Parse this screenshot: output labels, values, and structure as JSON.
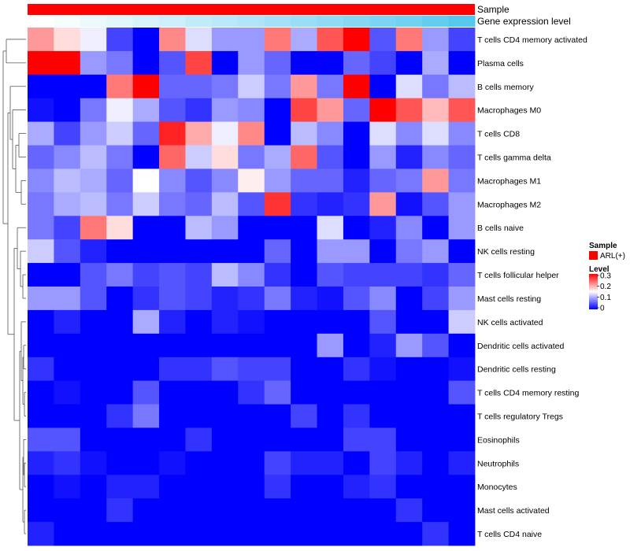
{
  "chart_data": {
    "type": "heatmap",
    "annotation_tracks": [
      {
        "label": "Sample",
        "color": "#ff0000"
      },
      {
        "label": "Gene expression level",
        "gradient": [
          "#ffffff",
          "#56c8f0"
        ]
      }
    ],
    "rows": [
      "T cells CD4 memory activated",
      "Plasma cells",
      "B cells memory",
      "Macrophages M0",
      "T cells CD8",
      "T cells gamma delta",
      "Macrophages M1",
      "Macrophages M2",
      "B cells naive",
      "NK cells resting",
      "T cells follicular helper",
      "Mast cells resting",
      "NK cells activated",
      "Dendritic cells activated",
      "Dendritic cells resting",
      "T cells CD4 memory resting",
      "T cells regulatory  Tregs",
      "Eosinophils",
      "Neutrophils",
      "Monocytes",
      "Mast cells activated",
      "T cells CD4 naive"
    ],
    "values": [
      [
        0.21,
        0.17,
        0.14,
        0.04,
        0.0,
        0.22,
        0.13,
        0.09,
        0.09,
        0.23,
        0.1,
        0.25,
        0.3,
        0.05,
        0.23,
        0.09,
        0.04
      ],
      [
        0.3,
        0.3,
        0.09,
        0.07,
        0.0,
        0.05,
        0.26,
        0.0,
        0.09,
        0.06,
        0.0,
        0.0,
        0.06,
        0.04,
        0.0,
        0.1,
        0.0
      ],
      [
        0.0,
        0.0,
        0.0,
        0.23,
        0.3,
        0.06,
        0.06,
        0.07,
        0.12,
        0.07,
        0.21,
        0.07,
        0.3,
        0.0,
        0.13,
        0.07,
        0.11
      ],
      [
        0.01,
        0.0,
        0.07,
        0.14,
        0.1,
        0.05,
        0.03,
        0.09,
        0.08,
        0.0,
        0.26,
        0.21,
        0.06,
        0.3,
        0.25,
        0.19,
        0.25
      ],
      [
        0.1,
        0.04,
        0.09,
        0.12,
        0.06,
        0.28,
        0.2,
        0.14,
        0.22,
        0.0,
        0.11,
        0.08,
        0.0,
        0.13,
        0.08,
        0.13,
        0.08
      ],
      [
        0.06,
        0.08,
        0.11,
        0.07,
        0.0,
        0.24,
        0.12,
        0.17,
        0.07,
        0.1,
        0.24,
        0.05,
        0.0,
        0.09,
        0.02,
        0.08,
        0.06
      ],
      [
        0.08,
        0.11,
        0.1,
        0.06,
        0.15,
        0.08,
        0.05,
        0.08,
        0.16,
        0.09,
        0.06,
        0.06,
        0.02,
        0.06,
        0.07,
        0.21,
        0.07
      ],
      [
        0.07,
        0.1,
        0.11,
        0.07,
        0.12,
        0.07,
        0.06,
        0.11,
        0.05,
        0.27,
        0.03,
        0.02,
        0.03,
        0.21,
        0.01,
        0.05,
        0.09
      ],
      [
        0.07,
        0.04,
        0.23,
        0.17,
        0.0,
        0.0,
        0.11,
        0.09,
        0.0,
        0.0,
        0.0,
        0.13,
        0.0,
        0.02,
        0.08,
        0.0,
        0.09
      ],
      [
        0.12,
        0.05,
        0.02,
        0.0,
        0.0,
        0.0,
        0.0,
        0.0,
        0.0,
        0.06,
        0.0,
        0.09,
        0.09,
        0.0,
        0.07,
        0.09,
        0.0
      ],
      [
        0.0,
        0.0,
        0.05,
        0.07,
        0.04,
        0.05,
        0.04,
        0.11,
        0.08,
        0.03,
        0.0,
        0.05,
        0.04,
        0.04,
        0.04,
        0.03,
        0.06
      ],
      [
        0.09,
        0.09,
        0.05,
        0.0,
        0.03,
        0.05,
        0.04,
        0.02,
        0.03,
        0.07,
        0.02,
        0.01,
        0.05,
        0.08,
        0.0,
        0.04,
        0.09
      ],
      [
        0.0,
        0.02,
        0.0,
        0.0,
        0.1,
        0.02,
        0.0,
        0.02,
        0.01,
        0.0,
        0.0,
        0.0,
        0.0,
        0.05,
        0.0,
        0.0,
        0.12
      ],
      [
        0.0,
        0.0,
        0.0,
        0.0,
        0.0,
        0.0,
        0.0,
        0.0,
        0.0,
        0.0,
        0.0,
        0.09,
        0.0,
        0.02,
        0.09,
        0.05,
        0.0
      ],
      [
        0.03,
        0.0,
        0.0,
        0.0,
        0.0,
        0.03,
        0.03,
        0.05,
        0.04,
        0.04,
        0.0,
        0.0,
        0.03,
        0.01,
        0.0,
        0.0,
        0.01
      ],
      [
        0.0,
        0.01,
        0.0,
        0.0,
        0.05,
        0.0,
        0.0,
        0.0,
        0.03,
        0.06,
        0.0,
        0.0,
        0.0,
        0.0,
        0.0,
        0.0,
        0.05
      ],
      [
        0.0,
        0.0,
        0.0,
        0.03,
        0.07,
        0.0,
        0.0,
        0.0,
        0.0,
        0.0,
        0.04,
        0.0,
        0.03,
        0.0,
        0.0,
        0.0,
        0.0
      ],
      [
        0.05,
        0.05,
        0.0,
        0.0,
        0.0,
        0.0,
        0.03,
        0.0,
        0.0,
        0.0,
        0.0,
        0.0,
        0.04,
        0.04,
        0.0,
        0.0,
        0.0
      ],
      [
        0.02,
        0.03,
        0.01,
        0.0,
        0.0,
        0.01,
        0.0,
        0.0,
        0.0,
        0.04,
        0.02,
        0.02,
        0.0,
        0.04,
        0.02,
        0.0,
        0.02
      ],
      [
        0.0,
        0.01,
        0.0,
        0.02,
        0.02,
        0.0,
        0.0,
        0.0,
        0.0,
        0.03,
        0.0,
        0.0,
        0.02,
        0.03,
        0.0,
        0.0,
        0.0
      ],
      [
        0.0,
        0.0,
        0.0,
        0.03,
        0.0,
        0.0,
        0.0,
        0.0,
        0.0,
        0.0,
        0.0,
        0.0,
        0.0,
        0.0,
        0.03,
        0.0,
        0.0
      ],
      [
        0.02,
        0.0,
        0.0,
        0.0,
        0.0,
        0.0,
        0.0,
        0.0,
        0.0,
        0.0,
        0.0,
        0.0,
        0.0,
        0.0,
        0.0,
        0.03,
        0.0
      ]
    ],
    "gene_expression_levels": [
      0.0,
      0.06,
      0.12,
      0.18,
      0.24,
      0.3,
      0.36,
      0.42,
      0.48,
      0.54,
      0.6,
      0.66,
      0.72,
      0.78,
      0.84,
      0.92,
      1.0
    ],
    "color_scale": {
      "min": 0,
      "max": 0.3,
      "colors": [
        "#0000ff",
        "#ffffff",
        "#ff0000"
      ],
      "ticks": [
        "0.3",
        "0.2",
        "0.1",
        "0"
      ]
    },
    "legend": {
      "sample_title": "Sample",
      "sample_entry": "ARL(+)",
      "level_title": "Level"
    },
    "dendrogram": "rows",
    "legend_position": "right"
  }
}
